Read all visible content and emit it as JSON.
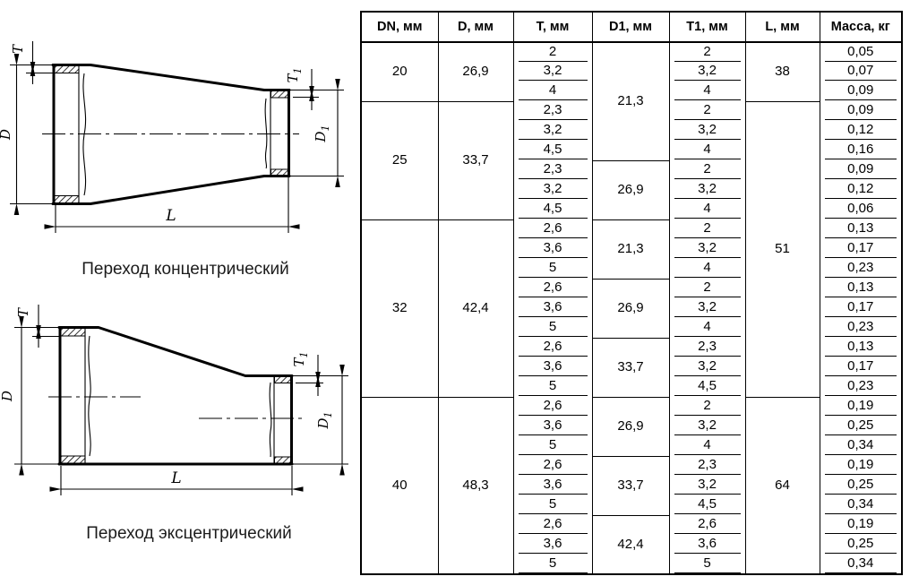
{
  "page": {
    "background": "#ffffff",
    "line_color": "#000000"
  },
  "figures": [
    {
      "id": "concentric",
      "caption": "Переход концентрический"
    },
    {
      "id": "eccentric",
      "caption": "Переход эксцентрический"
    }
  ],
  "dim_labels": {
    "D": "D",
    "T": "T",
    "L": "L",
    "sub1": "1"
  },
  "table": {
    "headers": [
      "DN, мм",
      "D, мм",
      "T, мм",
      "D1, мм",
      "T1, мм",
      "L, мм",
      "Масса, кг"
    ],
    "inset_columns": [
      2,
      4,
      6
    ],
    "rows": [
      {
        "cells": [
          {
            "c": 0,
            "v": "20",
            "rs": 3
          },
          {
            "c": 1,
            "v": "26,9",
            "rs": 3
          },
          {
            "c": 2,
            "v": "2"
          },
          {
            "c": 3,
            "v": "21,3",
            "rs": 6
          },
          {
            "c": 4,
            "v": "2"
          },
          {
            "c": 5,
            "v": "38",
            "rs": 3
          },
          {
            "c": 6,
            "v": "0,05"
          }
        ]
      },
      {
        "cells": [
          {
            "c": 2,
            "v": "3,2"
          },
          {
            "c": 4,
            "v": "3,2"
          },
          {
            "c": 6,
            "v": "0,07"
          }
        ]
      },
      {
        "cells": [
          {
            "c": 2,
            "v": "4"
          },
          {
            "c": 4,
            "v": "4"
          },
          {
            "c": 6,
            "v": "0,09"
          }
        ]
      },
      {
        "cells": [
          {
            "c": 0,
            "v": "25",
            "rs": 6
          },
          {
            "c": 1,
            "v": "33,7",
            "rs": 6
          },
          {
            "c": 2,
            "v": "2,3"
          },
          {
            "c": 4,
            "v": "2"
          },
          {
            "c": 5,
            "v": "51",
            "rs": 15
          },
          {
            "c": 6,
            "v": "0,09"
          }
        ]
      },
      {
        "cells": [
          {
            "c": 2,
            "v": "3,2"
          },
          {
            "c": 4,
            "v": "3,2"
          },
          {
            "c": 6,
            "v": "0,12"
          }
        ]
      },
      {
        "cells": [
          {
            "c": 2,
            "v": "4,5"
          },
          {
            "c": 4,
            "v": "4"
          },
          {
            "c": 6,
            "v": "0,16"
          }
        ]
      },
      {
        "cells": [
          {
            "c": 2,
            "v": "2,3"
          },
          {
            "c": 3,
            "v": "26,9",
            "rs": 3
          },
          {
            "c": 4,
            "v": "2"
          },
          {
            "c": 6,
            "v": "0,09"
          }
        ]
      },
      {
        "cells": [
          {
            "c": 2,
            "v": "3,2"
          },
          {
            "c": 4,
            "v": "3,2"
          },
          {
            "c": 6,
            "v": "0,12"
          }
        ]
      },
      {
        "cells": [
          {
            "c": 2,
            "v": "4,5"
          },
          {
            "c": 4,
            "v": "4"
          },
          {
            "c": 6,
            "v": "0,06"
          }
        ]
      },
      {
        "cells": [
          {
            "c": 0,
            "v": "32",
            "rs": 9
          },
          {
            "c": 1,
            "v": "42,4",
            "rs": 9
          },
          {
            "c": 2,
            "v": "2,6"
          },
          {
            "c": 3,
            "v": "21,3",
            "rs": 3
          },
          {
            "c": 4,
            "v": "2"
          },
          {
            "c": 6,
            "v": "0,13"
          }
        ]
      },
      {
        "cells": [
          {
            "c": 2,
            "v": "3,6"
          },
          {
            "c": 4,
            "v": "3,2"
          },
          {
            "c": 6,
            "v": "0,17"
          }
        ]
      },
      {
        "cells": [
          {
            "c": 2,
            "v": "5"
          },
          {
            "c": 4,
            "v": "4"
          },
          {
            "c": 6,
            "v": "0,23"
          }
        ]
      },
      {
        "cells": [
          {
            "c": 2,
            "v": "2,6"
          },
          {
            "c": 3,
            "v": "26,9",
            "rs": 3
          },
          {
            "c": 4,
            "v": "2"
          },
          {
            "c": 6,
            "v": "0,13"
          }
        ]
      },
      {
        "cells": [
          {
            "c": 2,
            "v": "3,6"
          },
          {
            "c": 4,
            "v": "3,2"
          },
          {
            "c": 6,
            "v": "0,17"
          }
        ]
      },
      {
        "cells": [
          {
            "c": 2,
            "v": "5"
          },
          {
            "c": 4,
            "v": "4"
          },
          {
            "c": 6,
            "v": "0,23"
          }
        ]
      },
      {
        "cells": [
          {
            "c": 2,
            "v": "2,6"
          },
          {
            "c": 3,
            "v": "33,7",
            "rs": 3
          },
          {
            "c": 4,
            "v": "2,3"
          },
          {
            "c": 6,
            "v": "0,13"
          }
        ]
      },
      {
        "cells": [
          {
            "c": 2,
            "v": "3,6"
          },
          {
            "c": 4,
            "v": "3,2"
          },
          {
            "c": 6,
            "v": "0,17"
          }
        ]
      },
      {
        "cells": [
          {
            "c": 2,
            "v": "5"
          },
          {
            "c": 4,
            "v": "4,5"
          },
          {
            "c": 6,
            "v": "0,23"
          }
        ]
      },
      {
        "cells": [
          {
            "c": 0,
            "v": "40",
            "rs": 9
          },
          {
            "c": 1,
            "v": "48,3",
            "rs": 9
          },
          {
            "c": 2,
            "v": "2,6"
          },
          {
            "c": 3,
            "v": "26,9",
            "rs": 3
          },
          {
            "c": 4,
            "v": "2"
          },
          {
            "c": 5,
            "v": "64",
            "rs": 9
          },
          {
            "c": 6,
            "v": "0,19"
          }
        ]
      },
      {
        "cells": [
          {
            "c": 2,
            "v": "3,6"
          },
          {
            "c": 4,
            "v": "3,2"
          },
          {
            "c": 6,
            "v": "0,25"
          }
        ]
      },
      {
        "cells": [
          {
            "c": 2,
            "v": "5"
          },
          {
            "c": 4,
            "v": "4"
          },
          {
            "c": 6,
            "v": "0,34"
          }
        ]
      },
      {
        "cells": [
          {
            "c": 2,
            "v": "2,6"
          },
          {
            "c": 3,
            "v": "33,7",
            "rs": 3
          },
          {
            "c": 4,
            "v": "2,3"
          },
          {
            "c": 6,
            "v": "0,19"
          }
        ]
      },
      {
        "cells": [
          {
            "c": 2,
            "v": "3,6"
          },
          {
            "c": 4,
            "v": "3,2"
          },
          {
            "c": 6,
            "v": "0,25"
          }
        ]
      },
      {
        "cells": [
          {
            "c": 2,
            "v": "5"
          },
          {
            "c": 4,
            "v": "4,5"
          },
          {
            "c": 6,
            "v": "0,34"
          }
        ]
      },
      {
        "cells": [
          {
            "c": 2,
            "v": "2,6"
          },
          {
            "c": 3,
            "v": "42,4",
            "rs": 3
          },
          {
            "c": 4,
            "v": "2,6"
          },
          {
            "c": 6,
            "v": "0,19"
          }
        ]
      },
      {
        "cells": [
          {
            "c": 2,
            "v": "3,6"
          },
          {
            "c": 4,
            "v": "3,6"
          },
          {
            "c": 6,
            "v": "0,25"
          }
        ]
      },
      {
        "cells": [
          {
            "c": 2,
            "v": "5"
          },
          {
            "c": 4,
            "v": "5"
          },
          {
            "c": 6,
            "v": "0,34"
          }
        ]
      }
    ]
  }
}
